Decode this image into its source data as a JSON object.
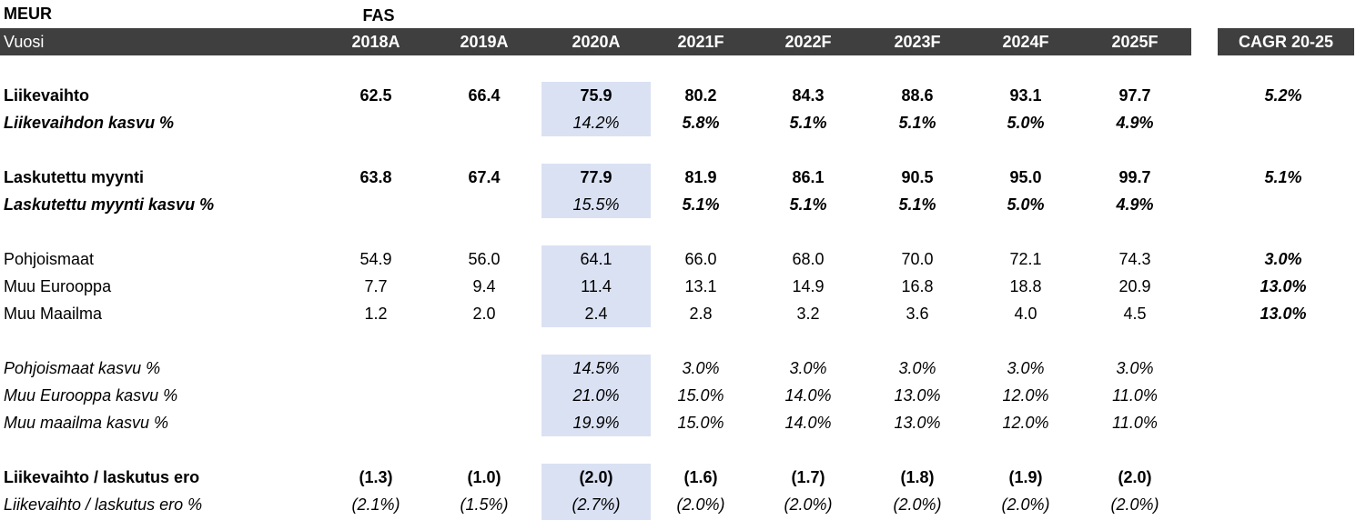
{
  "header": {
    "unit": "MEUR",
    "standard": "FAS"
  },
  "columns": {
    "label": "Vuosi",
    "years": [
      "2018A",
      "2019A",
      "2020A",
      "2021F",
      "2022F",
      "2023F",
      "2024F",
      "2025F"
    ],
    "cagr": "CAGR 20-25"
  },
  "rows": [
    {
      "label": "Liikevaihto",
      "values": [
        "62.5",
        "66.4",
        "75.9",
        "80.2",
        "84.3",
        "88.6",
        "93.1",
        "97.7"
      ],
      "cagr": "5.2%"
    },
    {
      "label": "Liikevaihdon kasvu %",
      "values": [
        null,
        null,
        "14.2%",
        "5.8%",
        "5.1%",
        "5.1%",
        "5.0%",
        "4.9%"
      ],
      "cagr": null
    },
    {
      "label": "Laskutettu myynti",
      "values": [
        "63.8",
        "67.4",
        "77.9",
        "81.9",
        "86.1",
        "90.5",
        "95.0",
        "99.7"
      ],
      "cagr": "5.1%"
    },
    {
      "label": "Laskutettu myynti kasvu %",
      "values": [
        null,
        null,
        "15.5%",
        "5.1%",
        "5.1%",
        "5.1%",
        "5.0%",
        "4.9%"
      ],
      "cagr": null
    },
    {
      "label": "Pohjoismaat",
      "values": [
        "54.9",
        "56.0",
        "64.1",
        "66.0",
        "68.0",
        "70.0",
        "72.1",
        "74.3"
      ],
      "cagr": "3.0%"
    },
    {
      "label": "Muu Eurooppa",
      "values": [
        "7.7",
        "9.4",
        "11.4",
        "13.1",
        "14.9",
        "16.8",
        "18.8",
        "20.9"
      ],
      "cagr": "13.0%"
    },
    {
      "label": "Muu Maailma",
      "values": [
        "1.2",
        "2.0",
        "2.4",
        "2.8",
        "3.2",
        "3.6",
        "4.0",
        "4.5"
      ],
      "cagr": "13.0%"
    },
    {
      "label": "Pohjoismaat kasvu %",
      "values": [
        null,
        null,
        "14.5%",
        "3.0%",
        "3.0%",
        "3.0%",
        "3.0%",
        "3.0%"
      ],
      "cagr": null
    },
    {
      "label": "Muu Eurooppa kasvu %",
      "values": [
        null,
        null,
        "21.0%",
        "15.0%",
        "14.0%",
        "13.0%",
        "12.0%",
        "11.0%"
      ],
      "cagr": null
    },
    {
      "label": "Muu maailma kasvu %",
      "values": [
        null,
        null,
        "19.9%",
        "15.0%",
        "14.0%",
        "13.0%",
        "12.0%",
        "11.0%"
      ],
      "cagr": null
    },
    {
      "label": "Liikevaihto / laskutus ero",
      "values": [
        "(1.3)",
        "(1.0)",
        "(2.0)",
        "(1.6)",
        "(1.7)",
        "(1.8)",
        "(1.9)",
        "(2.0)"
      ],
      "cagr": null
    },
    {
      "label": "Liikevaihto / laskutus ero %",
      "values": [
        "(2.1%)",
        "(1.5%)",
        "(2.7%)",
        "(2.0%)",
        "(2.0%)",
        "(2.0%)",
        "(2.0%)",
        "(2.0%)"
      ],
      "cagr": null
    }
  ]
}
